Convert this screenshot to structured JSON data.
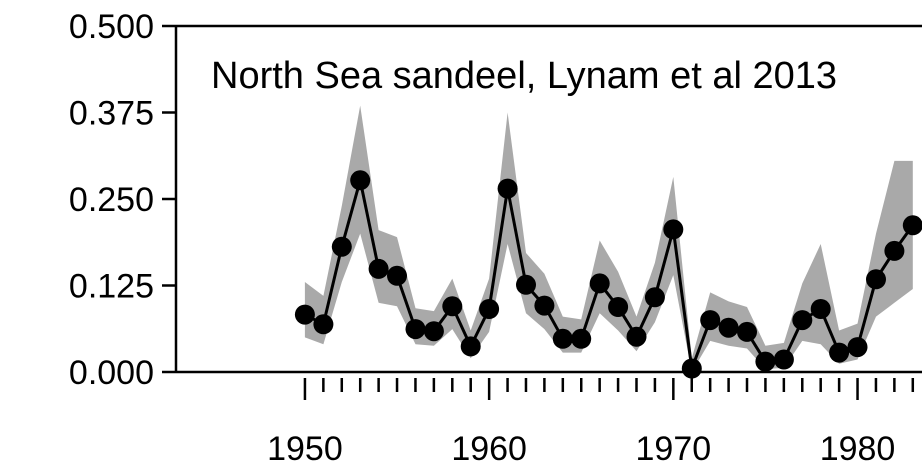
{
  "chart_data": {
    "type": "line",
    "title": "",
    "xlabel": "",
    "ylabel": "",
    "annotation": "North Sea sandeel, Lynam et al 2013",
    "xlim": [
      1943,
      1983.5
    ],
    "ylim": [
      0.0,
      0.5
    ],
    "yticks": [
      "0.000",
      "0.125",
      "0.250",
      "0.375",
      "0.500"
    ],
    "xticks": [
      "1950",
      "1960",
      "1970",
      "1980"
    ],
    "grid": false,
    "legend": "none",
    "colors": {
      "line": "#000000",
      "marker": "#000000",
      "band": "#a9a9a9",
      "axis": "#000000"
    },
    "x": [
      1950,
      1951,
      1952,
      1953,
      1954,
      1955,
      1956,
      1957,
      1958,
      1959,
      1960,
      1961,
      1962,
      1963,
      1964,
      1965,
      1966,
      1967,
      1968,
      1969,
      1970,
      1971,
      1972,
      1973,
      1974,
      1975,
      1976,
      1977,
      1978,
      1979,
      1980,
      1981,
      1982,
      1983
    ],
    "y": [
      0.083,
      0.069,
      0.181,
      0.277,
      0.149,
      0.139,
      0.062,
      0.059,
      0.095,
      0.037,
      0.091,
      0.265,
      0.126,
      0.096,
      0.048,
      0.048,
      0.128,
      0.094,
      0.051,
      0.108,
      0.206,
      0.005,
      0.075,
      0.064,
      0.058,
      0.015,
      0.018,
      0.075,
      0.091,
      0.028,
      0.036,
      0.134,
      0.175,
      0.212
    ],
    "upper": [
      0.13,
      0.11,
      0.24,
      0.385,
      0.205,
      0.195,
      0.092,
      0.088,
      0.135,
      0.06,
      0.135,
      0.375,
      0.172,
      0.142,
      0.08,
      0.076,
      0.19,
      0.145,
      0.08,
      0.158,
      0.282,
      0.02,
      0.115,
      0.102,
      0.094,
      0.038,
      0.042,
      0.128,
      0.185,
      0.06,
      0.07,
      0.2,
      0.305,
      0.305
    ],
    "lower": [
      0.05,
      0.04,
      0.13,
      0.2,
      0.1,
      0.095,
      0.04,
      0.038,
      0.062,
      0.02,
      0.058,
      0.185,
      0.085,
      0.062,
      0.028,
      0.028,
      0.085,
      0.06,
      0.03,
      0.072,
      0.14,
      0.0,
      0.045,
      0.038,
      0.034,
      0.004,
      0.006,
      0.045,
      0.04,
      0.012,
      0.018,
      0.08,
      0.1,
      0.12
    ]
  }
}
